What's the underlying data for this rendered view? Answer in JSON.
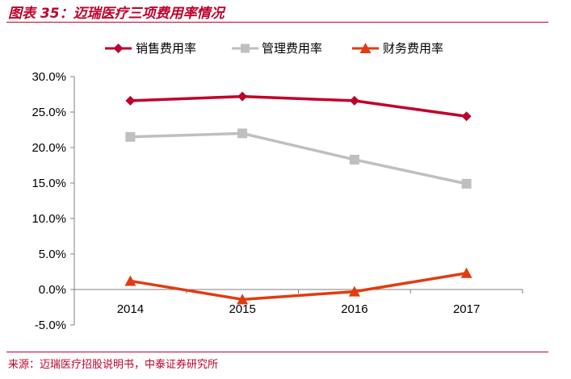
{
  "header": {
    "figure_title": "图表 35：迈瑞医疗三项费用率情况"
  },
  "footer": {
    "source": "来源：迈瑞医疗招股说明书，中泰证券研究所"
  },
  "colors": {
    "accent": "#c0002a"
  },
  "chart_data": {
    "type": "line",
    "categories": [
      "2014",
      "2015",
      "2016",
      "2017"
    ],
    "series": [
      {
        "name": "销售费用率",
        "values": [
          26.6,
          27.2,
          26.6,
          24.4
        ],
        "color": "#c0002a",
        "marker": "diamond"
      },
      {
        "name": "管理费用率",
        "values": [
          21.5,
          22.0,
          18.3,
          14.9
        ],
        "color": "#bfbfbf",
        "marker": "square"
      },
      {
        "name": "财务费用率",
        "values": [
          1.2,
          -1.4,
          -0.3,
          2.3
        ],
        "color": "#e03c10",
        "marker": "triangle"
      }
    ],
    "ylim": [
      -5,
      30
    ],
    "yticks": [
      "30.0%",
      "25.0%",
      "20.0%",
      "15.0%",
      "10.0%",
      "5.0%",
      "0.0%",
      "-5.0%"
    ],
    "ytick_values": [
      30,
      25,
      20,
      15,
      10,
      5,
      0,
      -5
    ],
    "legend_position": "top",
    "grid": false
  }
}
